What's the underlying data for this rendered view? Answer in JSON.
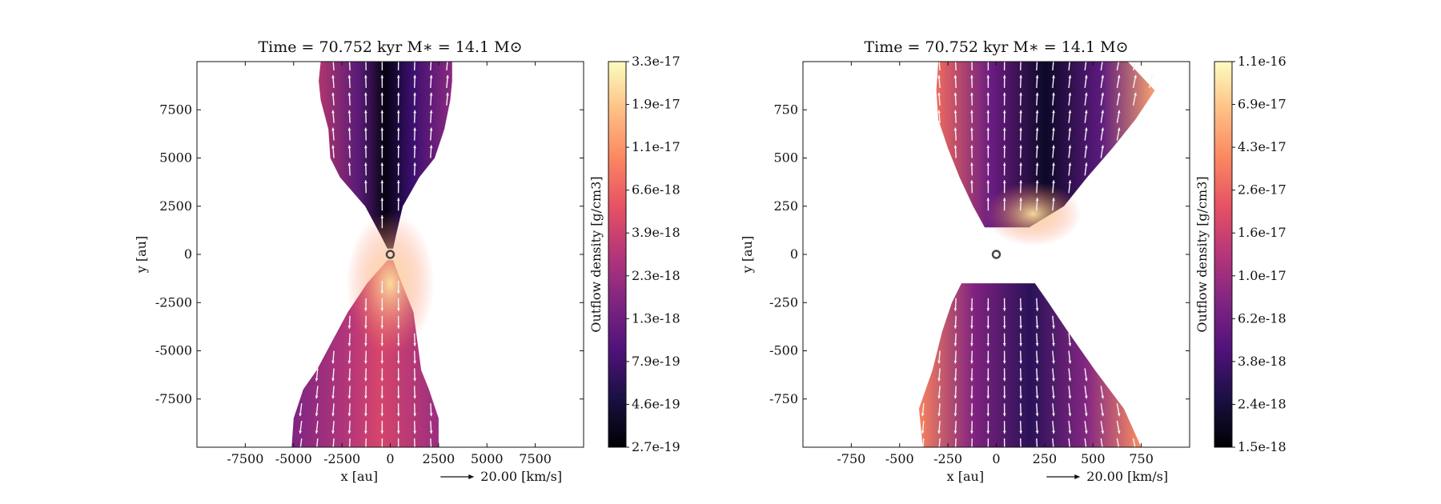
{
  "chart_data": [
    {
      "type": "heatmap",
      "title": "Time = 70.752 kyr    M∗ = 14.1 M⊙",
      "xlabel": "x [au]",
      "ylabel": "y [au]",
      "xlim": [
        -10000,
        10000
      ],
      "ylim": [
        -10000,
        10000
      ],
      "x_ticks": [
        -7500,
        -5000,
        -2500,
        0,
        2500,
        5000,
        7500
      ],
      "y_ticks": [
        7500,
        5000,
        2500,
        0,
        -2500,
        -5000,
        -7500
      ],
      "x_tick_labels": [
        "-7500",
        "-5000",
        "-2500",
        "0",
        "2500",
        "5000",
        "7500"
      ],
      "y_tick_labels": [
        "7500",
        "5000",
        "2500",
        "0",
        "-2500",
        "-5000",
        "-7500"
      ],
      "vector_key": "20.00 [km/s]",
      "colorbar": {
        "label": "Outflow density [g/cm3]",
        "scale": "log",
        "tick_labels": [
          "3.3e-17",
          "1.9e-17",
          "1.1e-17",
          "6.6e-18",
          "3.9e-18",
          "2.3e-18",
          "1.3e-18",
          "7.9e-19",
          "4.6e-19",
          "2.7e-19"
        ]
      },
      "outflow_upper_boundary": {
        "y": [
          300,
          1000,
          2500,
          4000,
          5000,
          6500,
          8000,
          9000,
          10000
        ],
        "x_left": [
          -150,
          -500,
          -1300,
          -2600,
          -3100,
          -3200,
          -3600,
          -3700,
          -3600
        ],
        "x_right": [
          150,
          300,
          650,
          1500,
          2300,
          2800,
          3100,
          3200,
          3200
        ]
      },
      "outflow_lower_boundary": {
        "y": [
          -300,
          -1500,
          -3000,
          -4500,
          -6000,
          -7000,
          -8500,
          -10000
        ],
        "x_left": [
          -150,
          -1200,
          -2200,
          -3000,
          -3800,
          -4500,
          -5000,
          -5100
        ],
        "x_right": [
          150,
          600,
          1200,
          1400,
          1600,
          2000,
          2500,
          2500
        ]
      },
      "star_marker": [
        0,
        0
      ],
      "color_scheme": "magma"
    },
    {
      "type": "heatmap",
      "title": "Time = 70.752 kyr    M∗ = 14.1 M⊙",
      "xlabel": "x [au]",
      "ylabel": "y [au]",
      "xlim": [
        -1000,
        1000
      ],
      "ylim": [
        -1000,
        1000
      ],
      "x_ticks": [
        -750,
        -500,
        -250,
        0,
        250,
        500,
        750
      ],
      "y_ticks": [
        750,
        500,
        250,
        0,
        -250,
        -500,
        -750
      ],
      "x_tick_labels": [
        "-750",
        "-500",
        "-250",
        "0",
        "250",
        "500",
        "750"
      ],
      "y_tick_labels": [
        "750",
        "500",
        "250",
        "0",
        "-250",
        "-500",
        "-750"
      ],
      "vector_key": "20.00 [km/s]",
      "colorbar": {
        "label": "Outflow density [g/cm3]",
        "scale": "log",
        "tick_labels": [
          "1.1e-16",
          "6.9e-17",
          "4.3e-17",
          "2.6e-17",
          "1.6e-17",
          "1.0e-17",
          "6.2e-18",
          "3.8e-18",
          "2.4e-18",
          "1.5e-18"
        ]
      },
      "outflow_upper_boundary": {
        "y": [
          140,
          250,
          400,
          550,
          700,
          850,
          1000
        ],
        "x_left": [
          -60,
          -120,
          -190,
          -250,
          -300,
          -310,
          -300
        ],
        "x_right": [
          170,
          350,
          470,
          600,
          720,
          820,
          680
        ]
      },
      "outflow_lower_boundary": {
        "y": [
          -150,
          -250,
          -400,
          -600,
          -800,
          -1000
        ],
        "x_left": [
          -180,
          -230,
          -280,
          -330,
          -400,
          -380
        ],
        "x_right": [
          200,
          270,
          370,
          510,
          660,
          750
        ]
      },
      "star_marker": [
        0,
        0
      ],
      "color_scheme": "magma"
    }
  ]
}
